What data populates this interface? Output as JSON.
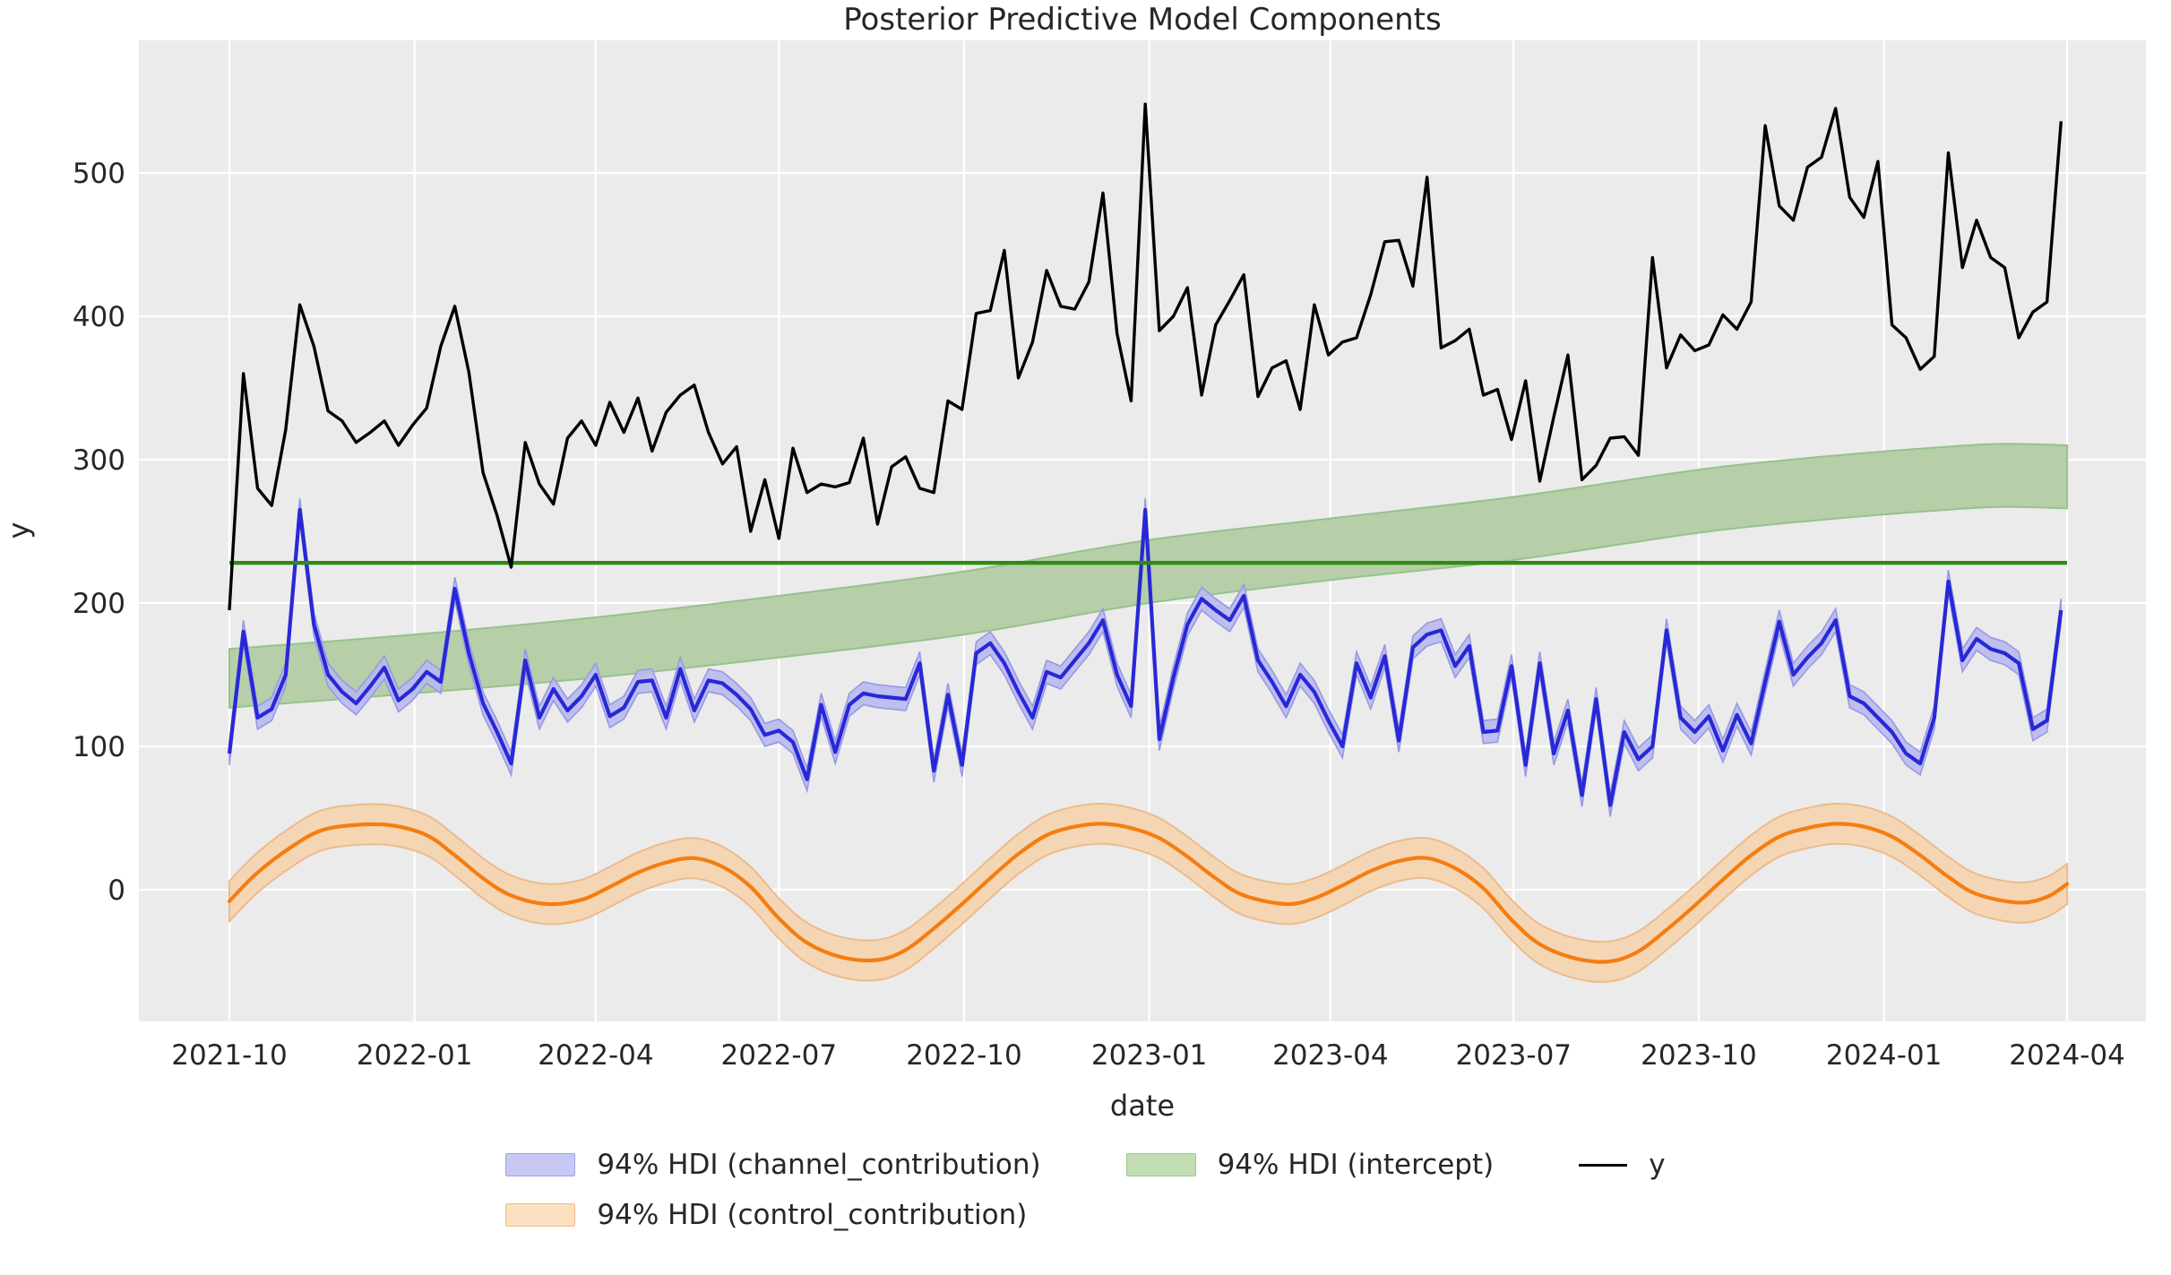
{
  "title": "Posterior Predictive Model Components",
  "axes": {
    "xlabel": "date",
    "ylabel": "y",
    "x_ticks": [
      {
        "date": "2021-10-01",
        "label": "2021-10"
      },
      {
        "date": "2022-01-01",
        "label": "2022-01"
      },
      {
        "date": "2022-04-01",
        "label": "2022-04"
      },
      {
        "date": "2022-07-01",
        "label": "2022-07"
      },
      {
        "date": "2022-10-01",
        "label": "2022-10"
      },
      {
        "date": "2023-01-01",
        "label": "2023-01"
      },
      {
        "date": "2023-04-01",
        "label": "2023-04"
      },
      {
        "date": "2023-07-01",
        "label": "2023-07"
      },
      {
        "date": "2023-10-01",
        "label": "2023-10"
      },
      {
        "date": "2024-01-01",
        "label": "2024-01"
      },
      {
        "date": "2024-04-01",
        "label": "2024-04"
      }
    ],
    "y_ticks": [
      0,
      100,
      200,
      300,
      400,
      500
    ],
    "ylim": [
      -92,
      592
    ],
    "grid": true,
    "plot_background": "#ebebeb",
    "grid_color": "#ffffff",
    "tick_text_color": "#262626"
  },
  "legend": {
    "position": "below-center",
    "channel": {
      "label": "94% HDI (channel_contribution)",
      "fill": "#c8c8f4",
      "edge": "#a0a0e8"
    },
    "control": {
      "label": "94% HDI (control_contribution)",
      "fill": "#fce0c2",
      "edge": "#f6b988"
    },
    "intercept": {
      "label": "94% HDI (intercept)",
      "fill": "#c2ddb4",
      "edge": "#9cc791"
    },
    "y": {
      "label": "y",
      "line_color": "#000000"
    }
  },
  "chart_data": {
    "type": "line",
    "x_unit": "weekly dates",
    "series": [
      {
        "name": "y",
        "kind": "line",
        "color": "#000000",
        "start": "2021-10-01",
        "freq_days": 7,
        "values": [
          195,
          360,
          280,
          268,
          321,
          408,
          379,
          334,
          327,
          312,
          319,
          327,
          310,
          324,
          336,
          379,
          407,
          361,
          291,
          261,
          225,
          312,
          283,
          269,
          315,
          327,
          310,
          340,
          319,
          343,
          306,
          333,
          345,
          352,
          319,
          297,
          309,
          250,
          286,
          245,
          308,
          277,
          283,
          281,
          284,
          315,
          255,
          295,
          302,
          280,
          277,
          341,
          335,
          402,
          404,
          446,
          357,
          382,
          432,
          407,
          405,
          424,
          486,
          388,
          341,
          548,
          390,
          400,
          420,
          345,
          394,
          411,
          429,
          344,
          364,
          369,
          335,
          408,
          373,
          382,
          385,
          415,
          452,
          453,
          421,
          497,
          378,
          383,
          391,
          345,
          349,
          314,
          355,
          285,
          330,
          373,
          286,
          296,
          315,
          316,
          303,
          441,
          364,
          387,
          376,
          380,
          401,
          391,
          410,
          533,
          477,
          467,
          504,
          511,
          545,
          483,
          469,
          508,
          394,
          385,
          363,
          372,
          514,
          434,
          467,
          441,
          434,
          385,
          403,
          410,
          536
        ]
      },
      {
        "name": "channel_contribution",
        "kind": "line+hdi",
        "hdi_label": "94% HDI (channel_contribution)",
        "line_color": "#2828d7",
        "band_fill": "#b9b9ef",
        "band_edge": "#9898e6",
        "hdi_halfwidth": 8,
        "start": "2021-10-01",
        "freq_days": 7,
        "values": [
          95,
          180,
          120,
          126,
          150,
          265,
          185,
          150,
          138,
          130,
          142,
          155,
          132,
          140,
          152,
          145,
          210,
          165,
          130,
          110,
          88,
          160,
          120,
          140,
          125,
          135,
          150,
          121,
          127,
          145,
          146,
          120,
          154,
          125,
          146,
          144,
          136,
          126,
          108,
          111,
          103,
          77,
          129,
          96,
          129,
          137,
          135,
          134,
          133,
          158,
          83,
          136,
          87,
          165,
          172,
          158,
          138,
          120,
          152,
          148,
          160,
          172,
          188,
          150,
          128,
          265,
          105,
          148,
          185,
          203,
          195,
          188,
          205,
          160,
          145,
          128,
          150,
          138,
          118,
          100,
          158,
          134,
          163,
          104,
          169,
          178,
          181,
          156,
          170,
          110,
          111,
          156,
          87,
          158,
          95,
          125,
          66,
          133,
          59,
          110,
          91,
          100,
          181,
          120,
          110,
          121,
          97,
          122,
          102,
          145,
          187,
          150,
          162,
          172,
          188,
          135,
          130,
          120,
          110,
          95,
          88,
          120,
          215,
          160,
          175,
          168,
          165,
          158,
          112,
          118,
          195
        ]
      },
      {
        "name": "control_contribution",
        "kind": "smooth-line+hdi",
        "hdi_label": "94% HDI (control_contribution)",
        "line_color": "#f57d11",
        "band_fill": "#f5d6b4",
        "band_edge": "#edba8c",
        "hdi_halfwidth": 14,
        "points": [
          {
            "d": "2021-10-01",
            "v": -8
          },
          {
            "d": "2021-10-15",
            "v": 12
          },
          {
            "d": "2021-11-01",
            "v": 30
          },
          {
            "d": "2021-11-15",
            "v": 41
          },
          {
            "d": "2021-12-01",
            "v": 45
          },
          {
            "d": "2021-12-20",
            "v": 45
          },
          {
            "d": "2022-01-07",
            "v": 38
          },
          {
            "d": "2022-01-21",
            "v": 24
          },
          {
            "d": "2022-02-04",
            "v": 8
          },
          {
            "d": "2022-02-18",
            "v": -4
          },
          {
            "d": "2022-03-08",
            "v": -10
          },
          {
            "d": "2022-03-25",
            "v": -7
          },
          {
            "d": "2022-04-08",
            "v": 2
          },
          {
            "d": "2022-04-22",
            "v": 12
          },
          {
            "d": "2022-05-06",
            "v": 19
          },
          {
            "d": "2022-05-20",
            "v": 22
          },
          {
            "d": "2022-06-03",
            "v": 16
          },
          {
            "d": "2022-06-17",
            "v": 2
          },
          {
            "d": "2022-07-01",
            "v": -20
          },
          {
            "d": "2022-07-15",
            "v": -37
          },
          {
            "d": "2022-08-01",
            "v": -47
          },
          {
            "d": "2022-08-19",
            "v": -49
          },
          {
            "d": "2022-09-02",
            "v": -42
          },
          {
            "d": "2022-09-16",
            "v": -27
          },
          {
            "d": "2022-09-30",
            "v": -10
          },
          {
            "d": "2022-10-14",
            "v": 8
          },
          {
            "d": "2022-10-28",
            "v": 25
          },
          {
            "d": "2022-11-11",
            "v": 38
          },
          {
            "d": "2022-11-25",
            "v": 44
          },
          {
            "d": "2022-12-09",
            "v": 46
          },
          {
            "d": "2022-12-23",
            "v": 43
          },
          {
            "d": "2023-01-06",
            "v": 36
          },
          {
            "d": "2023-01-20",
            "v": 23
          },
          {
            "d": "2023-02-03",
            "v": 8
          },
          {
            "d": "2023-02-17",
            "v": -4
          },
          {
            "d": "2023-03-10",
            "v": -10
          },
          {
            "d": "2023-03-24",
            "v": -6
          },
          {
            "d": "2023-04-07",
            "v": 3
          },
          {
            "d": "2023-04-21",
            "v": 13
          },
          {
            "d": "2023-05-05",
            "v": 20
          },
          {
            "d": "2023-05-19",
            "v": 22
          },
          {
            "d": "2023-06-02",
            "v": 15
          },
          {
            "d": "2023-06-16",
            "v": 1
          },
          {
            "d": "2023-06-30",
            "v": -21
          },
          {
            "d": "2023-07-14",
            "v": -38
          },
          {
            "d": "2023-08-01",
            "v": -48
          },
          {
            "d": "2023-08-18",
            "v": -50
          },
          {
            "d": "2023-09-01",
            "v": -43
          },
          {
            "d": "2023-09-15",
            "v": -28
          },
          {
            "d": "2023-09-29",
            "v": -11
          },
          {
            "d": "2023-10-13",
            "v": 7
          },
          {
            "d": "2023-10-27",
            "v": 24
          },
          {
            "d": "2023-11-10",
            "v": 37
          },
          {
            "d": "2023-11-24",
            "v": 43
          },
          {
            "d": "2023-12-08",
            "v": 46
          },
          {
            "d": "2023-12-22",
            "v": 44
          },
          {
            "d": "2024-01-05",
            "v": 37
          },
          {
            "d": "2024-01-19",
            "v": 24
          },
          {
            "d": "2024-02-02",
            "v": 9
          },
          {
            "d": "2024-02-16",
            "v": -3
          },
          {
            "d": "2024-03-08",
            "v": -9
          },
          {
            "d": "2024-03-22",
            "v": -5
          },
          {
            "d": "2024-04-01",
            "v": 4
          }
        ]
      },
      {
        "name": "intercept",
        "kind": "hline+hdi",
        "hdi_label": "94% HDI (intercept)",
        "line_color": "#2f8b14",
        "band_fill": "#b6cfa8",
        "band_edge": "#96c28c",
        "line_value": 228,
        "band": [
          {
            "d": "2021-10-01",
            "lo": 127,
            "hi": 168
          },
          {
            "d": "2022-01-01",
            "lo": 137,
            "hi": 178
          },
          {
            "d": "2022-04-01",
            "lo": 148,
            "hi": 190
          },
          {
            "d": "2022-07-01",
            "lo": 162,
            "hi": 205
          },
          {
            "d": "2022-10-01",
            "lo": 178,
            "hi": 222
          },
          {
            "d": "2023-01-01",
            "lo": 200,
            "hi": 244
          },
          {
            "d": "2023-04-01",
            "lo": 216,
            "hi": 259
          },
          {
            "d": "2023-07-01",
            "lo": 230,
            "hi": 274
          },
          {
            "d": "2023-10-01",
            "lo": 249,
            "hi": 293
          },
          {
            "d": "2023-12-01",
            "lo": 258,
            "hi": 302
          },
          {
            "d": "2024-02-01",
            "lo": 265,
            "hi": 309
          },
          {
            "d": "2024-03-01",
            "lo": 267,
            "hi": 311
          },
          {
            "d": "2024-04-01",
            "lo": 266,
            "hi": 310
          }
        ]
      }
    ]
  }
}
